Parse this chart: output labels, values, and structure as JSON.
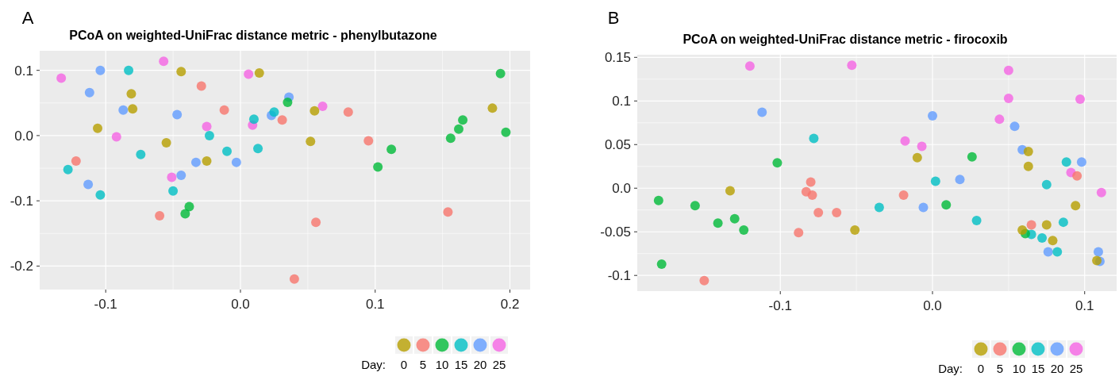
{
  "chart_data": [
    {
      "type": "scatter",
      "title": "PCoA on weighted-UniFrac distance metric - phenylbutazone",
      "annotations": [
        "A"
      ],
      "legend_title": "Day:",
      "legend": "bottom",
      "grid": true,
      "marker": "circle",
      "xlim": [
        -0.149,
        0.215
      ],
      "ylim": [
        -0.236,
        0.13
      ],
      "xticks": [
        -0.1,
        {
          "value": 0,
          "label": "0.0"
        },
        0.1,
        0.2
      ],
      "yticks": [
        -0.2,
        -0.1,
        {
          "value": 0,
          "label": "0.0"
        },
        0.1
      ],
      "series": [
        {
          "name": "0",
          "color": "#b79f00",
          "x": [
            -0.044,
            -0.081,
            -0.08,
            0.014,
            -0.106,
            -0.055,
            -0.025,
            0.055,
            0.052,
            0.187
          ],
          "values": [
            0.098,
            0.064,
            0.041,
            0.096,
            0.011,
            -0.011,
            -0.039,
            0.038,
            -0.009,
            0.042
          ]
        },
        {
          "name": "5",
          "color": "#f8766d",
          "x": [
            -0.029,
            -0.012,
            0.031,
            -0.122,
            -0.06,
            0.08,
            0.095,
            0.154,
            0.056,
            0.04
          ],
          "values": [
            0.076,
            0.039,
            0.024,
            -0.039,
            -0.123,
            0.036,
            -0.008,
            -0.117,
            -0.133,
            -0.22
          ]
        },
        {
          "name": "10",
          "color": "#00ba38",
          "x": [
            -0.038,
            -0.041,
            0.035,
            0.112,
            0.102,
            0.193,
            0.165,
            0.162,
            0.156,
            0.197
          ],
          "values": [
            -0.109,
            -0.12,
            0.051,
            -0.021,
            -0.048,
            0.095,
            0.024,
            0.01,
            -0.004,
            0.005
          ]
        },
        {
          "name": "15",
          "color": "#00bfc4",
          "x": [
            -0.083,
            0.025,
            0.01,
            -0.023,
            -0.074,
            -0.01,
            0.013,
            -0.128,
            -0.05,
            -0.104
          ],
          "values": [
            0.1,
            0.036,
            0.025,
            0.0,
            -0.029,
            -0.024,
            -0.02,
            -0.052,
            -0.085,
            -0.091
          ]
        },
        {
          "name": "20",
          "color": "#619cff",
          "x": [
            -0.104,
            -0.112,
            -0.087,
            -0.047,
            0.023,
            -0.033,
            -0.003,
            -0.044,
            -0.113,
            0.036
          ],
          "values": [
            0.1,
            0.066,
            0.039,
            0.032,
            0.031,
            -0.041,
            -0.041,
            -0.061,
            -0.075,
            0.059
          ]
        },
        {
          "name": "25",
          "color": "#f564e3",
          "x": [
            -0.133,
            -0.057,
            0.006,
            -0.025,
            0.009,
            -0.092,
            -0.051,
            0.061
          ],
          "values": [
            0.088,
            0.114,
            0.094,
            0.014,
            0.016,
            -0.002,
            -0.064,
            0.045
          ]
        }
      ]
    },
    {
      "type": "scatter",
      "title": "PCoA on weighted-UniFrac distance metric - firocoxib",
      "annotations": [
        "B"
      ],
      "legend_title": "Day:",
      "legend": "bottom",
      "grid": true,
      "marker": "circle",
      "xlim": [
        -0.194,
        0.121
      ],
      "ylim": [
        -0.118,
        0.153
      ],
      "xticks": [
        -0.1,
        {
          "value": 0,
          "label": "0.0"
        },
        0.1
      ],
      "yticks": [
        -0.1,
        -0.05,
        {
          "value": 0,
          "label": "0.0"
        },
        0.05,
        0.1,
        0.15
      ],
      "series": [
        {
          "name": "0",
          "color": "#b79f00",
          "x": [
            -0.133,
            -0.051,
            -0.01,
            0.063,
            0.063,
            0.094,
            0.075,
            0.059,
            0.079,
            0.108
          ],
          "values": [
            -0.003,
            -0.048,
            0.035,
            0.042,
            0.025,
            -0.02,
            -0.042,
            -0.048,
            -0.06,
            -0.083
          ]
        },
        {
          "name": "5",
          "color": "#f8766d",
          "x": [
            -0.08,
            -0.083,
            -0.079,
            -0.075,
            -0.063,
            -0.088,
            -0.15,
            0.095,
            -0.019,
            0.065
          ],
          "values": [
            0.007,
            -0.004,
            -0.008,
            -0.028,
            -0.028,
            -0.051,
            -0.106,
            0.014,
            -0.008,
            -0.042
          ]
        },
        {
          "name": "10",
          "color": "#00ba38",
          "x": [
            -0.102,
            -0.18,
            -0.156,
            -0.13,
            -0.141,
            -0.124,
            -0.178,
            0.026,
            0.009,
            0.061
          ],
          "values": [
            0.029,
            -0.014,
            -0.02,
            -0.035,
            -0.04,
            -0.048,
            -0.087,
            0.036,
            -0.019,
            -0.052
          ]
        },
        {
          "name": "15",
          "color": "#00bfc4",
          "x": [
            -0.078,
            0.088,
            0.002,
            0.075,
            -0.035,
            0.029,
            0.086,
            0.065,
            0.072,
            0.082
          ],
          "values": [
            0.057,
            0.03,
            0.008,
            0.004,
            -0.022,
            -0.037,
            -0.039,
            -0.053,
            -0.057,
            -0.073
          ]
        },
        {
          "name": "20",
          "color": "#619cff",
          "x": [
            -0.112,
            0.0,
            0.054,
            0.059,
            0.098,
            0.018,
            -0.006,
            0.076,
            0.109,
            0.11
          ],
          "values": [
            0.087,
            0.083,
            0.071,
            0.044,
            0.03,
            0.01,
            -0.022,
            -0.073,
            -0.073,
            -0.084
          ]
        },
        {
          "name": "25",
          "color": "#f564e3",
          "x": [
            -0.12,
            -0.053,
            0.05,
            0.05,
            0.097,
            0.044,
            -0.018,
            -0.007,
            0.091,
            0.111
          ],
          "values": [
            0.14,
            0.141,
            0.135,
            0.103,
            0.102,
            0.079,
            0.054,
            0.048,
            0.018,
            -0.005
          ]
        }
      ]
    }
  ]
}
